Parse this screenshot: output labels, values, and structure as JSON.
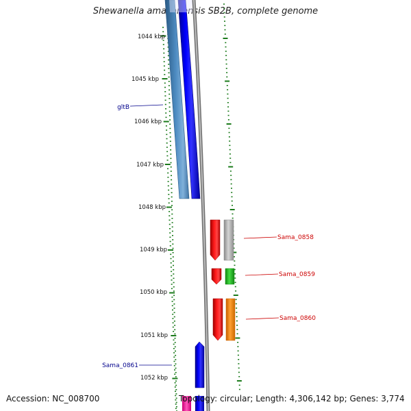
{
  "title": "Shewanella amazonensis SB2B, complete genome",
  "footer": {
    "accession": "Accession: NC_008700",
    "stats": "Topology: circular; Length: 4,306,142 bp; Genes: 3,774"
  },
  "kbp_ticks": [
    "1044 kbp",
    "1045 kbp",
    "1046 kbp",
    "1047 kbp",
    "1048 kbp",
    "1049 kbp",
    "1050 kbp",
    "1051 kbp",
    "1052 kbp"
  ],
  "gene_labels": [
    {
      "text": "gltB",
      "color": "#00008b"
    },
    {
      "text": "Sama_0858",
      "color": "#cc0000"
    },
    {
      "text": "Sama_0859",
      "color": "#cc0000"
    },
    {
      "text": "Sama_0860",
      "color": "#cc0000"
    },
    {
      "text": "Sama_0861",
      "color": "#00008b"
    }
  ],
  "colors": {
    "tick": "#1a7a1a",
    "backbone": "#8c8c8c",
    "forward_cds": "#0000ee",
    "reverse_cds": "#ee0000",
    "steelblue_feature": "#4682b4",
    "gray_feature": "#b0b0b0",
    "green_feature": "#22bb22",
    "orange_feature": "#ff8800",
    "pink_feature": "#ff33aa"
  }
}
